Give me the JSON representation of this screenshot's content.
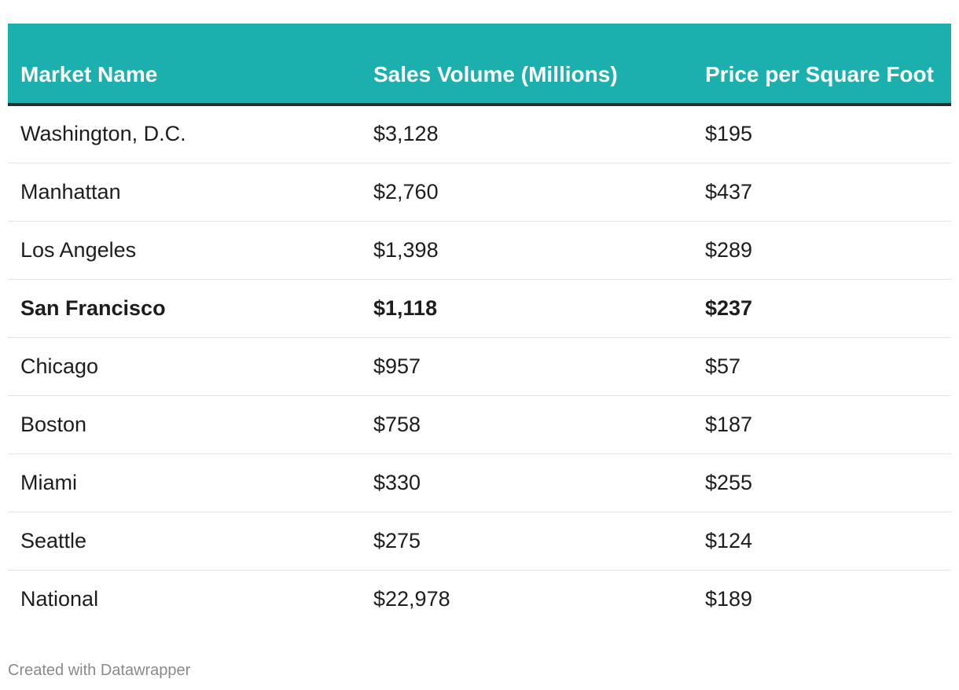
{
  "chart_data": {
    "type": "table",
    "columns": [
      "Market Name",
      "Sales Volume (Millions)",
      "Price per Square Foot"
    ],
    "rows": [
      {
        "market": "Washington, D.C.",
        "sales_volume": "$3,128",
        "price_psf": "$195",
        "bold": false
      },
      {
        "market": "Manhattan",
        "sales_volume": "$2,760",
        "price_psf": "$437",
        "bold": false
      },
      {
        "market": "Los Angeles",
        "sales_volume": "$1,398",
        "price_psf": "$289",
        "bold": false
      },
      {
        "market": "San Francisco",
        "sales_volume": "$1,118",
        "price_psf": "$237",
        "bold": true
      },
      {
        "market": "Chicago",
        "sales_volume": "$957",
        "price_psf": "$57",
        "bold": false
      },
      {
        "market": "Boston",
        "sales_volume": "$758",
        "price_psf": "$187",
        "bold": false
      },
      {
        "market": "Miami",
        "sales_volume": "$330",
        "price_psf": "$255",
        "bold": false
      },
      {
        "market": "Seattle",
        "sales_volume": "$275",
        "price_psf": "$124",
        "bold": false
      },
      {
        "market": "National",
        "sales_volume": "$22,978",
        "price_psf": "$189",
        "bold": false
      }
    ],
    "header_color": "#1bb0ae",
    "header_text_color": "#ffffff",
    "highlighted_row": "San Francisco"
  },
  "footer": {
    "credit": "Created with Datawrapper"
  }
}
